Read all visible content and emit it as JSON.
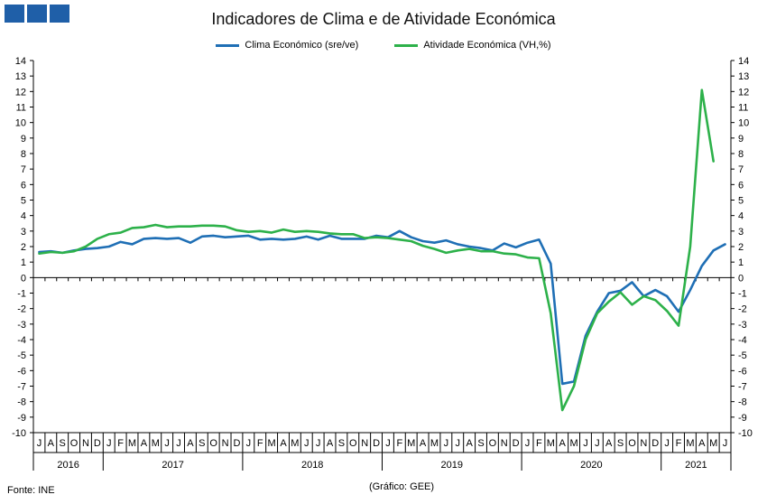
{
  "header": {
    "logo_icon": "ine-logo-icon"
  },
  "chart_data": {
    "type": "line",
    "title": "Indicadores de Clima e de Atividade Económica",
    "source": "Fonte: INE",
    "credit": "(Gráfico: GEE)",
    "ylim": [
      -10,
      14
    ],
    "yticks": [
      -10,
      -9,
      -8,
      -7,
      -6,
      -5,
      -4,
      -3,
      -2,
      -1,
      0,
      1,
      2,
      3,
      4,
      5,
      6,
      7,
      8,
      9,
      10,
      11,
      12,
      13,
      14
    ],
    "month_labels": [
      "J",
      "A",
      "S",
      "O",
      "N",
      "D",
      "J",
      "F",
      "M",
      "A",
      "M",
      "J",
      "J",
      "A",
      "S",
      "O",
      "N",
      "D",
      "J",
      "F",
      "M",
      "A",
      "M",
      "J",
      "J",
      "A",
      "S",
      "O",
      "N",
      "D",
      "J",
      "F",
      "M",
      "A",
      "M",
      "J",
      "J",
      "A",
      "S",
      "O",
      "N",
      "D",
      "J",
      "F",
      "M",
      "A",
      "M",
      "J",
      "J",
      "A",
      "S",
      "O",
      "N",
      "D",
      "J",
      "F",
      "M",
      "A",
      "M",
      "J"
    ],
    "year_labels": [
      {
        "label": "2016",
        "start": 0,
        "end": 5
      },
      {
        "label": "2017",
        "start": 6,
        "end": 17
      },
      {
        "label": "2018",
        "start": 18,
        "end": 29
      },
      {
        "label": "2019",
        "start": 30,
        "end": 41
      },
      {
        "label": "2020",
        "start": 42,
        "end": 53
      },
      {
        "label": "2021",
        "start": 54,
        "end": 59
      }
    ],
    "series": [
      {
        "name": "Clima Económico (sre/ve)",
        "color": "#1f6fb5",
        "values": [
          1.65,
          1.7,
          1.6,
          1.75,
          1.85,
          1.9,
          2.0,
          2.3,
          2.15,
          2.5,
          2.55,
          2.5,
          2.55,
          2.25,
          2.65,
          2.7,
          2.6,
          2.65,
          2.7,
          2.45,
          2.5,
          2.45,
          2.5,
          2.65,
          2.45,
          2.7,
          2.5,
          2.5,
          2.5,
          2.7,
          2.6,
          3.0,
          2.6,
          2.35,
          2.25,
          2.4,
          2.15,
          2.0,
          1.9,
          1.75,
          2.2,
          1.95,
          2.25,
          2.45,
          0.9,
          -6.85,
          -6.7,
          -3.75,
          -2.2,
          -1.0,
          -0.85,
          -0.3,
          -1.2,
          -0.8,
          -1.2,
          -2.2,
          -0.8,
          0.75,
          1.75,
          2.15
        ]
      },
      {
        "name": "Atividade Económica (VH,%)",
        "color": "#2db14a",
        "values": [
          1.55,
          1.65,
          1.6,
          1.7,
          2.0,
          2.5,
          2.8,
          2.9,
          3.2,
          3.25,
          3.4,
          3.25,
          3.3,
          3.3,
          3.35,
          3.35,
          3.3,
          3.05,
          2.95,
          3.0,
          2.9,
          3.1,
          2.95,
          3.0,
          2.95,
          2.85,
          2.8,
          2.8,
          2.55,
          2.6,
          2.55,
          2.45,
          2.35,
          2.05,
          1.85,
          1.6,
          1.75,
          1.85,
          1.7,
          1.7,
          1.55,
          1.5,
          1.3,
          1.25,
          -2.3,
          -8.55,
          -7.0,
          -4.0,
          -2.3,
          -1.55,
          -0.95,
          -1.75,
          -1.2,
          -1.45,
          -2.15,
          -3.1,
          2.0,
          12.1,
          7.5,
          null
        ]
      }
    ]
  }
}
